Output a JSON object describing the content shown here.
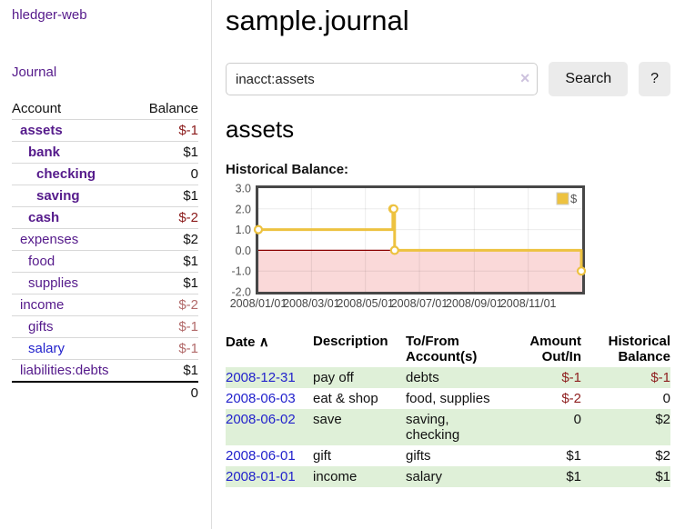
{
  "app": {
    "brand": "hledger-web",
    "nav_journal": "Journal"
  },
  "colors": {
    "link_purple": "#551a8b",
    "link_blue": "#2222cc",
    "negative_strong": "#8b1a1a",
    "negative_muted": "#b26a6a",
    "register_negative": "#8f2020",
    "row_highlight": "#dff0d8"
  },
  "sidebar": {
    "accounts_header": {
      "account": "Account",
      "balance": "Balance"
    },
    "accounts": [
      {
        "name": "assets",
        "depth": 1,
        "balance": "$-1",
        "bold": true,
        "negative": true,
        "blue": false
      },
      {
        "name": "bank",
        "depth": 2,
        "balance": "$1",
        "bold": true,
        "negative": false,
        "blue": false
      },
      {
        "name": "checking",
        "depth": 3,
        "balance": "0",
        "bold": true,
        "negative": false,
        "blue": false
      },
      {
        "name": "saving",
        "depth": 3,
        "balance": "$1",
        "bold": true,
        "negative": false,
        "blue": false
      },
      {
        "name": "cash",
        "depth": 2,
        "balance": "$-2",
        "bold": true,
        "negative": true,
        "blue": false
      },
      {
        "name": "expenses",
        "depth": 1,
        "balance": "$2",
        "bold": false,
        "negative": false,
        "blue": false
      },
      {
        "name": "food",
        "depth": 2,
        "balance": "$1",
        "bold": false,
        "negative": false,
        "blue": false
      },
      {
        "name": "supplies",
        "depth": 2,
        "balance": "$1",
        "bold": false,
        "negative": false,
        "blue": false
      },
      {
        "name": "income",
        "depth": 1,
        "balance": "$-2",
        "bold": false,
        "negative": true,
        "blue": false
      },
      {
        "name": "gifts",
        "depth": 2,
        "balance": "$-1",
        "bold": false,
        "negative": true,
        "blue": false
      },
      {
        "name": "salary",
        "depth": 2,
        "balance": "$-1",
        "bold": false,
        "negative": true,
        "blue": true
      },
      {
        "name": "liabilities:debts",
        "depth": 1,
        "balance": "$1",
        "bold": false,
        "negative": false,
        "blue": false
      }
    ],
    "total": "0"
  },
  "header": {
    "title": "sample.journal"
  },
  "search": {
    "value": "inacct:assets",
    "clear_icon": "×",
    "button": "Search",
    "help_button": "?"
  },
  "account_page": {
    "title": "assets",
    "chart_label": "Historical Balance:"
  },
  "chart_data": {
    "type": "line",
    "step": true,
    "title": "Historical Balance",
    "series": [
      {
        "name": "$",
        "color": "#edc240",
        "points": [
          [
            "2008-01-01",
            1
          ],
          [
            "2008-06-01",
            2
          ],
          [
            "2008-06-02",
            2
          ],
          [
            "2008-06-03",
            0
          ],
          [
            "2008-12-31",
            -1
          ]
        ]
      }
    ],
    "xrange": [
      "2008-01-01",
      "2009-01-01"
    ],
    "ylim": [
      -2,
      3
    ],
    "yticks": [
      3.0,
      2.0,
      1.0,
      0.0,
      -1.0,
      -2.0
    ],
    "xticks": [
      "2008/01/01",
      "2008/03/01",
      "2008/05/01",
      "2008/07/01",
      "2008/09/01",
      "2008/11/01"
    ],
    "grid": true,
    "legend_position": "top-right",
    "colors": {
      "negative_region": "#fad9d9",
      "zero_line": "#8b0000",
      "border": "#474747",
      "tick_label": "#545454"
    }
  },
  "register": {
    "columns": [
      {
        "label": "Date",
        "sort_indicator": "∧"
      },
      {
        "label": "Description"
      },
      {
        "label": "To/From Account(s)"
      },
      {
        "label": "Amount Out/In",
        "align": "right"
      },
      {
        "label": "Historical Balance",
        "align": "right"
      }
    ],
    "rows": [
      {
        "date": "2008-12-31",
        "description": "pay off",
        "accounts": "debts",
        "amount": "$-1",
        "amount_negative": true,
        "balance": "$-1",
        "balance_negative": true,
        "highlight": true
      },
      {
        "date": "2008-06-03",
        "description": "eat & shop",
        "accounts": "food, supplies",
        "amount": "$-2",
        "amount_negative": true,
        "balance": "0",
        "balance_negative": false,
        "highlight": false
      },
      {
        "date": "2008-06-02",
        "description": "save",
        "accounts": "saving, checking",
        "amount": "0",
        "amount_negative": false,
        "balance": "$2",
        "balance_negative": false,
        "highlight": true
      },
      {
        "date": "2008-06-01",
        "description": "gift",
        "accounts": "gifts",
        "amount": "$1",
        "amount_negative": false,
        "balance": "$2",
        "balance_negative": false,
        "highlight": false
      },
      {
        "date": "2008-01-01",
        "description": "income",
        "accounts": "salary",
        "amount": "$1",
        "amount_negative": false,
        "balance": "$1",
        "balance_negative": false,
        "highlight": true
      }
    ]
  }
}
